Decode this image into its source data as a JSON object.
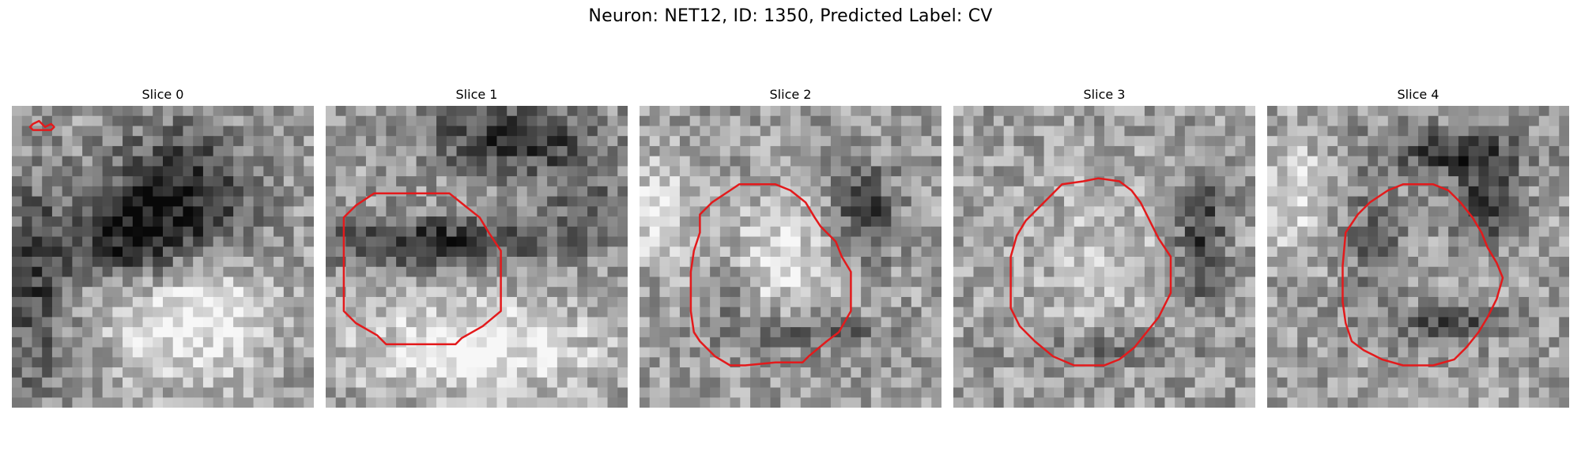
{
  "figure": {
    "title": "Neuron: NET12, ID: 1350, Predicted Label: CV"
  },
  "panels": [
    {
      "title": "Slice 0",
      "contour": [
        [
          0.07,
          0.06
        ],
        [
          0.09,
          0.05
        ],
        [
          0.1,
          0.06
        ],
        [
          0.11,
          0.07
        ],
        [
          0.13,
          0.06
        ],
        [
          0.14,
          0.07
        ],
        [
          0.13,
          0.08
        ],
        [
          0.07,
          0.08
        ],
        [
          0.06,
          0.07
        ]
      ]
    },
    {
      "title": "Slice 1",
      "contour": [
        [
          0.06,
          0.37
        ],
        [
          0.1,
          0.33
        ],
        [
          0.13,
          0.31
        ],
        [
          0.16,
          0.29
        ],
        [
          0.41,
          0.29
        ],
        [
          0.46,
          0.33
        ],
        [
          0.51,
          0.37
        ],
        [
          0.54,
          0.42
        ],
        [
          0.58,
          0.48
        ],
        [
          0.58,
          0.68
        ],
        [
          0.52,
          0.73
        ],
        [
          0.45,
          0.77
        ],
        [
          0.43,
          0.79
        ],
        [
          0.2,
          0.79
        ],
        [
          0.17,
          0.76
        ],
        [
          0.1,
          0.72
        ],
        [
          0.06,
          0.68
        ],
        [
          0.06,
          0.51
        ]
      ]
    },
    {
      "title": "Slice 2",
      "contour": [
        [
          0.2,
          0.36
        ],
        [
          0.24,
          0.32
        ],
        [
          0.3,
          0.28
        ],
        [
          0.33,
          0.26
        ],
        [
          0.45,
          0.26
        ],
        [
          0.5,
          0.28
        ],
        [
          0.55,
          0.32
        ],
        [
          0.58,
          0.37
        ],
        [
          0.6,
          0.4
        ],
        [
          0.65,
          0.45
        ],
        [
          0.67,
          0.5
        ],
        [
          0.7,
          0.55
        ],
        [
          0.7,
          0.68
        ],
        [
          0.66,
          0.75
        ],
        [
          0.62,
          0.78
        ],
        [
          0.56,
          0.83
        ],
        [
          0.55,
          0.84
        ],
        [
          0.54,
          0.85
        ],
        [
          0.45,
          0.85
        ],
        [
          0.35,
          0.86
        ],
        [
          0.3,
          0.86
        ],
        [
          0.25,
          0.83
        ],
        [
          0.2,
          0.78
        ],
        [
          0.18,
          0.75
        ],
        [
          0.17,
          0.68
        ],
        [
          0.17,
          0.55
        ],
        [
          0.18,
          0.48
        ],
        [
          0.2,
          0.42
        ]
      ]
    },
    {
      "title": "Slice 3",
      "contour": [
        [
          0.24,
          0.38
        ],
        [
          0.28,
          0.34
        ],
        [
          0.32,
          0.3
        ],
        [
          0.36,
          0.26
        ],
        [
          0.43,
          0.25
        ],
        [
          0.48,
          0.24
        ],
        [
          0.55,
          0.25
        ],
        [
          0.59,
          0.28
        ],
        [
          0.62,
          0.32
        ],
        [
          0.64,
          0.36
        ],
        [
          0.66,
          0.4
        ],
        [
          0.68,
          0.44
        ],
        [
          0.72,
          0.5
        ],
        [
          0.72,
          0.62
        ],
        [
          0.68,
          0.7
        ],
        [
          0.64,
          0.75
        ],
        [
          0.6,
          0.8
        ],
        [
          0.55,
          0.84
        ],
        [
          0.5,
          0.86
        ],
        [
          0.4,
          0.86
        ],
        [
          0.33,
          0.83
        ],
        [
          0.27,
          0.78
        ],
        [
          0.22,
          0.73
        ],
        [
          0.19,
          0.67
        ],
        [
          0.19,
          0.5
        ],
        [
          0.21,
          0.43
        ]
      ]
    },
    {
      "title": "Slice 4",
      "contour": [
        [
          0.26,
          0.42
        ],
        [
          0.3,
          0.36
        ],
        [
          0.34,
          0.32
        ],
        [
          0.4,
          0.28
        ],
        [
          0.45,
          0.26
        ],
        [
          0.55,
          0.26
        ],
        [
          0.6,
          0.28
        ],
        [
          0.64,
          0.32
        ],
        [
          0.68,
          0.37
        ],
        [
          0.71,
          0.42
        ],
        [
          0.73,
          0.47
        ],
        [
          0.76,
          0.52
        ],
        [
          0.78,
          0.57
        ],
        [
          0.76,
          0.64
        ],
        [
          0.73,
          0.7
        ],
        [
          0.7,
          0.75
        ],
        [
          0.66,
          0.8
        ],
        [
          0.62,
          0.84
        ],
        [
          0.55,
          0.86
        ],
        [
          0.45,
          0.86
        ],
        [
          0.38,
          0.84
        ],
        [
          0.32,
          0.81
        ],
        [
          0.28,
          0.78
        ],
        [
          0.26,
          0.72
        ],
        [
          0.25,
          0.65
        ],
        [
          0.25,
          0.53
        ]
      ]
    }
  ],
  "colors": {
    "contour": "#e31a1c"
  },
  "image_grid": {
    "pixels": 30
  }
}
